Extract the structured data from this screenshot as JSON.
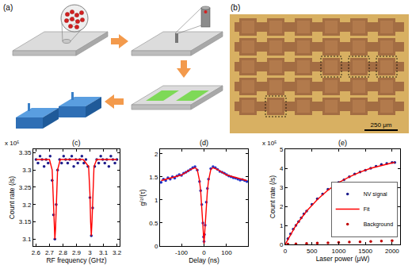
{
  "diagram": {
    "label": "(a)"
  },
  "image": {
    "label": "(b)",
    "scale_bar": "250 μm"
  },
  "chart_data": [
    {
      "type": "scatter",
      "title": "(c)",
      "xlabel": "RF frequency (GHz)",
      "ylabel": "Count rate (/s)",
      "annotations": [
        "x 10⁵"
      ],
      "xlim": [
        2.58,
        3.22
      ],
      "xticks": [
        2.6,
        2.7,
        2.8,
        2.9,
        3,
        3.1,
        3.2
      ],
      "ylim": [
        3.08,
        3.36
      ],
      "yticks": [
        3.1,
        3.15,
        3.2,
        3.25,
        3.3,
        3.35
      ],
      "grid": false,
      "series": [
        {
          "type": "scatter",
          "marker": "circle",
          "color": "#1c1c8c",
          "x": [
            2.6,
            2.615,
            2.63,
            2.645,
            2.66,
            2.675,
            2.69,
            2.705,
            2.72,
            2.73,
            2.74,
            2.75,
            2.76,
            2.775,
            2.79,
            2.805,
            2.82,
            2.835,
            2.85,
            2.865,
            2.88,
            2.895,
            2.91,
            2.925,
            2.94,
            2.955,
            2.97,
            2.985,
            3.0,
            3.01,
            3.02,
            3.035,
            3.05,
            3.065,
            3.08,
            3.095,
            3.11,
            3.125,
            3.14,
            3.155,
            3.17,
            3.185,
            3.2
          ],
          "values": [
            3.33,
            3.32,
            3.34,
            3.33,
            3.31,
            3.33,
            3.32,
            3.34,
            3.27,
            3.17,
            3.1,
            3.2,
            3.3,
            3.33,
            3.32,
            3.34,
            3.33,
            3.32,
            3.33,
            3.34,
            3.31,
            3.33,
            3.32,
            3.33,
            3.34,
            3.32,
            3.33,
            3.31,
            3.22,
            3.11,
            3.19,
            3.31,
            3.33,
            3.32,
            3.34,
            3.33,
            3.32,
            3.33,
            3.31,
            3.34,
            3.33,
            3.32,
            3.33
          ]
        },
        {
          "type": "line",
          "line_style": "solid",
          "color": "#ff0000",
          "x": [
            2.6,
            2.7,
            2.72,
            2.73,
            2.735,
            2.74,
            2.745,
            2.75,
            2.76,
            2.78,
            2.95,
            2.99,
            3.0,
            3.005,
            3.01,
            3.015,
            3.02,
            3.03,
            3.05,
            3.2
          ],
          "values": [
            3.33,
            3.33,
            3.3,
            3.2,
            3.13,
            3.1,
            3.13,
            3.2,
            3.3,
            3.33,
            3.33,
            3.31,
            3.23,
            3.15,
            3.11,
            3.15,
            3.22,
            3.31,
            3.33,
            3.33
          ]
        }
      ]
    },
    {
      "type": "scatter",
      "title": "(d)",
      "xlabel": "Delay (ns)",
      "ylabel": "g⁽²⁾(τ)",
      "xlim": [
        -195,
        195
      ],
      "xticks": [
        -100,
        0,
        100
      ],
      "ylim": [
        0,
        2.1
      ],
      "yticks": [
        0,
        0.5,
        1,
        1.5,
        2
      ],
      "grid": false,
      "series": [
        {
          "type": "scatter",
          "marker": "circle",
          "color": "#2233c8",
          "x": [
            -190,
            -180,
            -170,
            -160,
            -150,
            -140,
            -130,
            -120,
            -110,
            -100,
            -90,
            -80,
            -70,
            -60,
            -50,
            -40,
            -30,
            -20,
            -15,
            -10,
            -5,
            -2,
            0,
            2,
            5,
            10,
            15,
            20,
            30,
            40,
            50,
            60,
            70,
            80,
            90,
            100,
            110,
            120,
            130,
            140,
            150,
            160,
            170,
            180,
            190
          ],
          "values": [
            1.38,
            1.45,
            1.42,
            1.48,
            1.45,
            1.5,
            1.47,
            1.52,
            1.55,
            1.53,
            1.58,
            1.6,
            1.63,
            1.66,
            1.7,
            1.72,
            1.65,
            1.4,
            1.2,
            0.9,
            0.5,
            0.2,
            0.1,
            0.25,
            0.45,
            0.95,
            1.25,
            1.45,
            1.68,
            1.72,
            1.7,
            1.66,
            1.62,
            1.6,
            1.58,
            1.55,
            1.52,
            1.5,
            1.48,
            1.47,
            1.45,
            1.43,
            1.44,
            1.42,
            1.4
          ]
        },
        {
          "type": "line",
          "line_style": "solid",
          "color": "#ff0000",
          "x": [
            -190,
            -100,
            -60,
            -40,
            -30,
            -20,
            -15,
            -10,
            -5,
            0,
            5,
            10,
            15,
            20,
            30,
            40,
            60,
            100,
            190
          ],
          "values": [
            1.42,
            1.54,
            1.66,
            1.7,
            1.66,
            1.42,
            1.2,
            0.9,
            0.45,
            0.05,
            0.45,
            0.9,
            1.2,
            1.42,
            1.66,
            1.7,
            1.66,
            1.54,
            1.42
          ]
        }
      ]
    },
    {
      "type": "scatter",
      "title": "(e)",
      "xlabel": "Laser power (μW)",
      "ylabel": "Count rate (/s)",
      "annotations": [
        "x 10⁵"
      ],
      "xlim": [
        0,
        2150
      ],
      "xticks": [
        0,
        500,
        1000,
        1500,
        2000
      ],
      "ylim": [
        0,
        5
      ],
      "yticks": [
        0,
        1,
        2,
        3,
        4,
        5
      ],
      "grid": false,
      "legend": "bottom right",
      "series": [
        {
          "name": "NV signal",
          "type": "scatter",
          "marker": "circle",
          "color": "#1c1c8c",
          "x": [
            50,
            100,
            150,
            200,
            250,
            300,
            350,
            400,
            500,
            600,
            700,
            800,
            900,
            1000,
            1100,
            1200,
            1300,
            1400,
            1500,
            1600,
            1700,
            1800,
            1900,
            2000,
            2050
          ],
          "values": [
            0.3,
            0.55,
            0.8,
            1.0,
            1.2,
            1.4,
            1.6,
            1.75,
            2.1,
            2.4,
            2.65,
            2.9,
            3.1,
            3.25,
            3.4,
            3.55,
            3.7,
            3.8,
            3.9,
            4.0,
            4.1,
            4.2,
            4.25,
            4.3,
            4.3
          ]
        },
        {
          "name": "Fit",
          "type": "line",
          "line_style": "solid",
          "color": "#ff0000",
          "x": [
            0,
            200,
            400,
            600,
            800,
            1000,
            1200,
            1400,
            1600,
            1800,
            2000,
            2050
          ],
          "values": [
            0,
            1.0,
            1.75,
            2.35,
            2.85,
            3.25,
            3.55,
            3.8,
            4.0,
            4.15,
            4.28,
            4.3
          ]
        },
        {
          "name": "Background",
          "type": "scatter",
          "marker": "circle",
          "color": "#c00000",
          "x": [
            50,
            200,
            400,
            600,
            800,
            1000,
            1200,
            1400,
            1600,
            1800,
            2000
          ],
          "values": [
            0.02,
            0.03,
            0.05,
            0.07,
            0.08,
            0.1,
            0.12,
            0.14,
            0.16,
            0.18,
            0.2
          ]
        }
      ]
    }
  ]
}
